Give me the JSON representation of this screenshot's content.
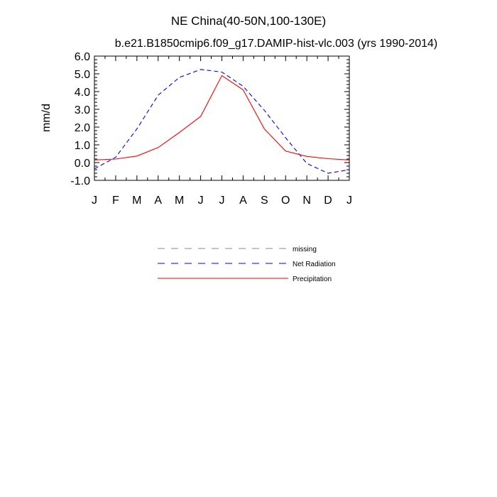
{
  "chart_data": {
    "type": "line",
    "title": "NE China(40-50N,100-130E)",
    "subtitle": "b.e21.B1850cmip6.f09_g17.DAMIP-hist-vlc.003 (yrs 1990-2014)",
    "xlabel": "",
    "ylabel": "mm/d",
    "ylim": [
      -1.0,
      6.0
    ],
    "yticks": [
      -1.0,
      0.0,
      1.0,
      2.0,
      3.0,
      4.0,
      5.0,
      6.0
    ],
    "ytick_labels": [
      "-1.0",
      "0.0",
      "1.0",
      "2.0",
      "3.0",
      "4.0",
      "5.0",
      "6.0"
    ],
    "categories": [
      "J",
      "F",
      "M",
      "A",
      "M",
      "J",
      "J",
      "A",
      "S",
      "O",
      "N",
      "D",
      "J"
    ],
    "series": [
      {
        "name": "Net Radiation",
        "color": "#0000ff",
        "style": "dashed",
        "values": [
          -0.35,
          0.3,
          1.9,
          3.8,
          4.8,
          5.25,
          5.1,
          4.3,
          2.95,
          1.4,
          -0.05,
          -0.6,
          -0.4
        ]
      },
      {
        "name": "Precipitation",
        "color": "#ff0000",
        "style": "solid",
        "values": [
          0.15,
          0.2,
          0.37,
          0.85,
          1.7,
          2.6,
          4.9,
          4.1,
          1.9,
          0.65,
          0.35,
          0.22,
          0.15
        ]
      }
    ],
    "legend": [
      {
        "label": "missing",
        "color": "#888888",
        "style": "dashed"
      },
      {
        "label": "Net Radiation",
        "color": "#0000ff",
        "style": "dashed"
      },
      {
        "label": "Precipitation",
        "color": "#ff0000",
        "style": "solid"
      }
    ],
    "legend_position": "below"
  }
}
